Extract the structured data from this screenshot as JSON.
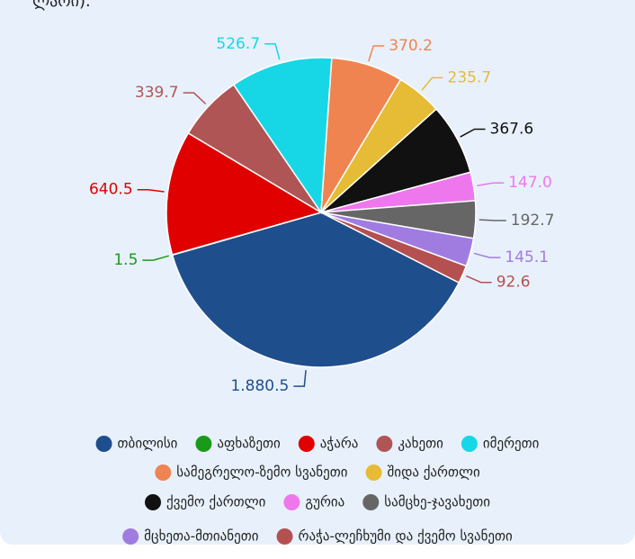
{
  "chart_data": {
    "type": "pie",
    "title": "ლარი).",
    "categories": [
      "თბილისი",
      "აფხაზეთი",
      "აჭარა",
      "კახეთი",
      "იმერეთი",
      "სამეგრელო-ზემო სვანეთი",
      "შიდა ქართლი",
      "ქვემო ქართლი",
      "გურია",
      "სამცხე-ჯავახეთი",
      "მცხეთა-მთიანეთი",
      "რაჭა-ლეჩხუმი და ქვემო სვანეთი"
    ],
    "values": [
      1880.5,
      1.5,
      640.5,
      339.7,
      526.7,
      370.2,
      235.7,
      367.6,
      147.0,
      192.7,
      145.1,
      92.6
    ],
    "value_labels": [
      "1.880.5",
      "1.5",
      "640.5",
      "339.7",
      "526.7",
      "370.2",
      "235.7",
      "367.6",
      "147.0",
      "192.7",
      "145.1",
      "92.6"
    ],
    "colors": [
      "#1f4e8c",
      "#1a9a1a",
      "#e00000",
      "#b05555",
      "#17d7e6",
      "#ef8450",
      "#e6bb35",
      "#111111",
      "#ee77ee",
      "#666666",
      "#a07ce0",
      "#b55050"
    ],
    "legend": "bottom"
  }
}
